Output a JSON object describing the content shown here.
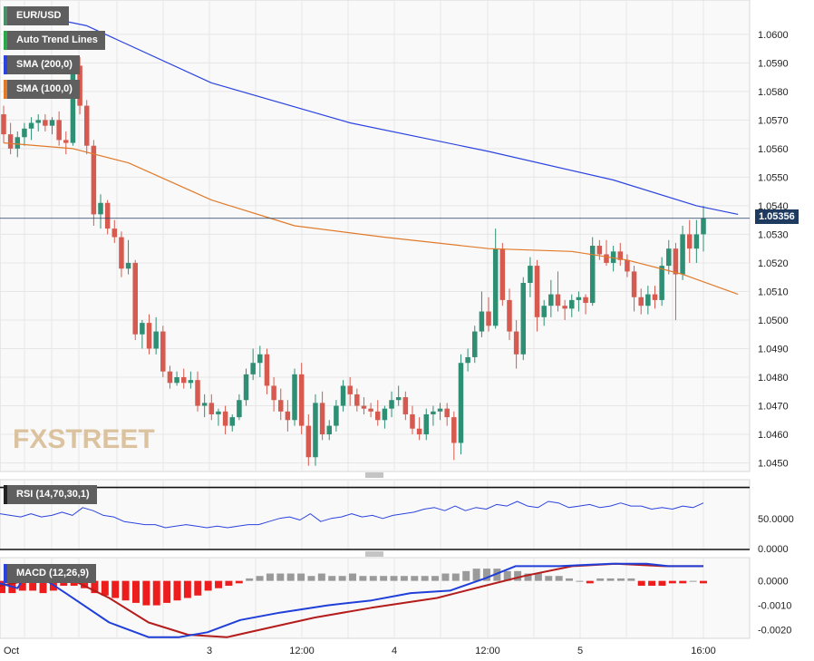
{
  "legend": {
    "symbol": "EUR/USD",
    "trend": "Auto Trend Lines",
    "sma200": "SMA (200,0)",
    "sma100": "SMA (100,0)",
    "rsi": "RSI (14,70,30,1)",
    "macd": "MACD (12,26,9)"
  },
  "watermark": "FXSTREET",
  "price_badge": "1.05356",
  "colors": {
    "bull": "#2f8f74",
    "bear": "#d65a4f",
    "sma200": "#2b44e0",
    "sma100": "#e07a2a",
    "rsi_line": "#2b44e0",
    "macd_line": "#1f3fd8",
    "signal_line": "#b51c1c",
    "hist_neg": "#ee1d1d",
    "hist_pos": "#9a9a9a",
    "legend_eur": "#4a8f6a",
    "legend_trend": "#2aa84a",
    "legend_sma200": "#2b44e0",
    "legend_sma100": "#e07a2a",
    "legend_rsi": "#222222",
    "legend_macd": "#2b44e0"
  },
  "chart_data": [
    {
      "type": "candlestick",
      "title": "EUR/USD",
      "ylim": [
        1.0447,
        1.0612
      ],
      "y_ticks": [
        "1.0450",
        "1.0460",
        "1.0470",
        "1.0480",
        "1.0490",
        "1.0500",
        "1.0510",
        "1.0520",
        "1.0530",
        "1.0540",
        "1.0550",
        "1.0560",
        "1.0570",
        "1.0580",
        "1.0590",
        "1.0600"
      ],
      "x_ticks": [
        "Oct",
        "3",
        "12:00",
        "4",
        "12:00",
        "5",
        "16:00"
      ],
      "last_price": 1.05356,
      "candles": [
        [
          1.0572,
          1.0575,
          1.0562,
          1.0565
        ],
        [
          1.0565,
          1.0569,
          1.0558,
          1.056
        ],
        [
          1.056,
          1.0566,
          1.0557,
          1.0564
        ],
        [
          1.0564,
          1.0569,
          1.0561,
          1.0567
        ],
        [
          1.0567,
          1.0571,
          1.0563,
          1.0569
        ],
        [
          1.0569,
          1.0572,
          1.0566,
          1.057
        ],
        [
          1.057,
          1.0572,
          1.0566,
          1.0568
        ],
        [
          1.0568,
          1.0571,
          1.0565,
          1.057
        ],
        [
          1.057,
          1.0573,
          1.0561,
          1.0563
        ],
        [
          1.0563,
          1.0566,
          1.0558,
          1.0562
        ],
        [
          1.0562,
          1.0592,
          1.0561,
          1.0589
        ],
        [
          1.0589,
          1.0592,
          1.0572,
          1.0575
        ],
        [
          1.0575,
          1.0577,
          1.0558,
          1.0561
        ],
        [
          1.0561,
          1.0563,
          1.0533,
          1.0537
        ],
        [
          1.0537,
          1.0544,
          1.0532,
          1.0541
        ],
        [
          1.0541,
          1.0542,
          1.053,
          1.0532
        ],
        [
          1.0532,
          1.0535,
          1.0527,
          1.0529
        ],
        [
          1.0529,
          1.0531,
          1.0515,
          1.0518
        ],
        [
          1.0518,
          1.0528,
          1.0516,
          1.052
        ],
        [
          1.052,
          1.0521,
          1.0493,
          1.0495
        ],
        [
          1.0495,
          1.05,
          1.049,
          1.0499
        ],
        [
          1.0499,
          1.0502,
          1.0488,
          1.049
        ],
        [
          1.049,
          1.0501,
          1.0488,
          1.0496
        ],
        [
          1.0496,
          1.0498,
          1.048,
          1.0482
        ],
        [
          1.0482,
          1.0484,
          1.0476,
          1.0478
        ],
        [
          1.0478,
          1.0482,
          1.0477,
          1.048
        ],
        [
          1.048,
          1.0483,
          1.0476,
          1.0478
        ],
        [
          1.0478,
          1.0482,
          1.0476,
          1.0479
        ],
        [
          1.0479,
          1.0482,
          1.0468,
          1.047
        ],
        [
          1.047,
          1.0474,
          1.0466,
          1.0471
        ],
        [
          1.0471,
          1.0474,
          1.0465,
          1.0467
        ],
        [
          1.0467,
          1.0469,
          1.0463,
          1.0468
        ],
        [
          1.0468,
          1.047,
          1.046,
          1.0463
        ],
        [
          1.0463,
          1.0467,
          1.0461,
          1.0466
        ],
        [
          1.0466,
          1.0474,
          1.0465,
          1.0472
        ],
        [
          1.0472,
          1.0483,
          1.047,
          1.0481
        ],
        [
          1.0481,
          1.049,
          1.0479,
          1.0485
        ],
        [
          1.0485,
          1.0491,
          1.048,
          1.0488
        ],
        [
          1.0488,
          1.049,
          1.0474,
          1.0477
        ],
        [
          1.0477,
          1.048,
          1.0468,
          1.0472
        ],
        [
          1.0472,
          1.0476,
          1.0465,
          1.0468
        ],
        [
          1.0468,
          1.0472,
          1.0461,
          1.0465
        ],
        [
          1.0465,
          1.0483,
          1.0463,
          1.0481
        ],
        [
          1.0481,
          1.0485,
          1.046,
          1.0463
        ],
        [
          1.0463,
          1.0467,
          1.0449,
          1.0452
        ],
        [
          1.0452,
          1.0474,
          1.0449,
          1.0471
        ],
        [
          1.0471,
          1.0475,
          1.0458,
          1.046
        ],
        [
          1.046,
          1.0465,
          1.0458,
          1.0463
        ],
        [
          1.0463,
          1.0472,
          1.0461,
          1.047
        ],
        [
          1.047,
          1.0479,
          1.0468,
          1.0477
        ],
        [
          1.0477,
          1.048,
          1.047,
          1.0474
        ],
        [
          1.0474,
          1.0476,
          1.0468,
          1.047
        ],
        [
          1.047,
          1.0473,
          1.0467,
          1.0469
        ],
        [
          1.0469,
          1.0471,
          1.0466,
          1.0468
        ],
        [
          1.0468,
          1.0472,
          1.0463,
          1.0465
        ],
        [
          1.0465,
          1.047,
          1.0462,
          1.0469
        ],
        [
          1.0469,
          1.0475,
          1.0466,
          1.0472
        ],
        [
          1.0472,
          1.0477,
          1.047,
          1.0473
        ],
        [
          1.0473,
          1.0475,
          1.0465,
          1.0467
        ],
        [
          1.0467,
          1.047,
          1.046,
          1.0462
        ],
        [
          1.0462,
          1.0466,
          1.0458,
          1.046
        ],
        [
          1.046,
          1.0469,
          1.0458,
          1.0467
        ],
        [
          1.0467,
          1.047,
          1.0463,
          1.0468
        ],
        [
          1.0468,
          1.0471,
          1.0465,
          1.0469
        ],
        [
          1.0469,
          1.0471,
          1.0463,
          1.0466
        ],
        [
          1.0466,
          1.0468,
          1.0451,
          1.0457
        ],
        [
          1.0457,
          1.0488,
          1.0453,
          1.0485
        ],
        [
          1.0485,
          1.049,
          1.0482,
          1.0487
        ],
        [
          1.0487,
          1.0498,
          1.0485,
          1.0496
        ],
        [
          1.0496,
          1.051,
          1.0494,
          1.0503
        ],
        [
          1.0503,
          1.0508,
          1.0496,
          1.0498
        ],
        [
          1.0498,
          1.0532,
          1.0497,
          1.0525
        ],
        [
          1.0525,
          1.0527,
          1.0505,
          1.0507
        ],
        [
          1.0507,
          1.0511,
          1.0493,
          1.0496
        ],
        [
          1.0496,
          1.05,
          1.0483,
          1.0488
        ],
        [
          1.0488,
          1.0515,
          1.0486,
          1.0513
        ],
        [
          1.0513,
          1.0522,
          1.0508,
          1.0519
        ],
        [
          1.0519,
          1.0521,
          1.0496,
          1.0501
        ],
        [
          1.0501,
          1.0507,
          1.0498,
          1.0505
        ],
        [
          1.0505,
          1.0514,
          1.0501,
          1.0509
        ],
        [
          1.0509,
          1.0517,
          1.0503,
          1.0505
        ],
        [
          1.0505,
          1.0507,
          1.05,
          1.0504
        ],
        [
          1.0504,
          1.0509,
          1.0501,
          1.0507
        ],
        [
          1.0507,
          1.051,
          1.0503,
          1.0508
        ],
        [
          1.0508,
          1.0509,
          1.0502,
          1.0506
        ],
        [
          1.0506,
          1.0529,
          1.0505,
          1.0526
        ],
        [
          1.0526,
          1.0528,
          1.0521,
          1.0523
        ],
        [
          1.0523,
          1.0528,
          1.0519,
          1.052
        ],
        [
          1.052,
          1.0526,
          1.0517,
          1.0524
        ],
        [
          1.0524,
          1.0527,
          1.0519,
          1.0521
        ],
        [
          1.0521,
          1.0523,
          1.0515,
          1.0517
        ],
        [
          1.0517,
          1.0519,
          1.0503,
          1.0508
        ],
        [
          1.0508,
          1.0511,
          1.0502,
          1.0505
        ],
        [
          1.0505,
          1.0512,
          1.0502,
          1.0509
        ],
        [
          1.0509,
          1.0512,
          1.0504,
          1.0507
        ],
        [
          1.0507,
          1.0522,
          1.0505,
          1.0519
        ],
        [
          1.0519,
          1.0528,
          1.0516,
          1.0525
        ],
        [
          1.0525,
          1.0527,
          1.05,
          1.0516
        ],
        [
          1.0516,
          1.0533,
          1.0514,
          1.053
        ],
        [
          1.053,
          1.0535,
          1.052,
          1.0525
        ],
        [
          1.0525,
          1.0535,
          1.052,
          1.053
        ],
        [
          1.053,
          1.054,
          1.0524,
          1.05356
        ]
      ],
      "sma200": [
        [
          0,
          1.0609
        ],
        [
          12,
          1.0603
        ],
        [
          30,
          1.0583
        ],
        [
          50,
          1.0569
        ],
        [
          70,
          1.0559
        ],
        [
          88,
          1.0549
        ],
        [
          100,
          1.054
        ],
        [
          106,
          1.0537
        ]
      ],
      "sma100": [
        [
          0,
          1.0562
        ],
        [
          10,
          1.056
        ],
        [
          18,
          1.0555
        ],
        [
          30,
          1.0542
        ],
        [
          42,
          1.0533
        ],
        [
          55,
          1.0529
        ],
        [
          70,
          1.0525
        ],
        [
          82,
          1.0524
        ],
        [
          90,
          1.0521
        ],
        [
          98,
          1.0516
        ],
        [
          106,
          1.0509
        ]
      ]
    },
    {
      "type": "line",
      "title": "RSI (14,70,30,1)",
      "ylim": [
        30,
        75
      ],
      "y_ticks": [
        "50.0000"
      ],
      "reference_levels": [
        70,
        30
      ],
      "values": [
        53,
        52,
        51,
        53,
        51,
        52,
        54,
        52,
        57,
        55,
        52,
        51,
        48,
        47,
        46,
        46,
        44,
        45,
        46,
        45,
        44,
        45,
        44,
        45,
        46,
        46,
        48,
        50,
        51,
        49,
        53,
        48,
        50,
        51,
        53,
        51,
        52,
        50,
        52,
        53,
        54,
        56,
        57,
        55,
        58,
        55,
        57,
        56,
        59,
        58,
        61,
        58,
        57,
        61,
        60,
        57,
        58,
        59,
        57,
        58,
        60,
        58,
        58,
        56,
        57,
        56,
        58,
        57,
        60
      ]
    },
    {
      "type": "bar+line",
      "title": "MACD (12,26,9)",
      "ylim": [
        -0.00235,
        0.00095
      ],
      "y_ticks": [
        "0.0000",
        "-0.0010",
        "-0.0020"
      ],
      "histogram": [
        -0.0005,
        -0.0005,
        -0.0004,
        -0.0004,
        -0.0005,
        -0.0004,
        -0.0002,
        -0.0002,
        -0.0003,
        -0.0005,
        -0.0006,
        -0.0007,
        -0.0008,
        -0.0009,
        -0.001,
        -0.001,
        -0.0009,
        -0.0008,
        -0.0007,
        -0.0006,
        -0.0004,
        -0.0003,
        -0.0002,
        -0.0001,
        0.0001,
        0.0002,
        0.0003,
        0.0003,
        0.0003,
        0.0003,
        0.0002,
        0.0003,
        0.0002,
        0.0002,
        0.0003,
        0.0002,
        0.0002,
        0.0002,
        0.0002,
        0.0002,
        0.0002,
        0.0002,
        0.0002,
        0.0003,
        0.0003,
        0.0004,
        0.0005,
        0.0005,
        0.0005,
        0.0004,
        0.0004,
        0.0003,
        0.0003,
        0.0002,
        0.0002,
        0.0001,
        0,
        -0.0001,
        0.0001,
        0.0001,
        0.0001,
        0.0001,
        -0.0002,
        -0.0002,
        -0.0002,
        -0.0001,
        -0.0001,
        0,
        -0.0001
      ],
      "macd": [
        [
          0,
          -0.0001
        ],
        [
          8,
          -0.0003
        ],
        [
          12,
          0.00025
        ],
        [
          18,
          0.0002
        ],
        [
          30,
          -0.0005
        ],
        [
          50,
          -0.0017
        ],
        [
          68,
          -0.0023
        ],
        [
          82,
          -0.0023
        ],
        [
          95,
          -0.0021
        ],
        [
          110,
          -0.0016
        ],
        [
          128,
          -0.0013
        ],
        [
          150,
          -0.001
        ],
        [
          170,
          -0.0008
        ],
        [
          188,
          -0.0005
        ],
        [
          206,
          -0.0004
        ],
        [
          222,
          0.0001
        ],
        [
          236,
          0.0006
        ],
        [
          256,
          0.0006
        ],
        [
          280,
          0.0007
        ],
        [
          296,
          0.0007
        ],
        [
          306,
          0.0006
        ],
        [
          322,
          0.0006
        ]
      ],
      "signal": [
        [
          0,
          -0.0002
        ],
        [
          18,
          0.0001
        ],
        [
          34,
          0.0
        ],
        [
          50,
          -0.0007
        ],
        [
          68,
          -0.0017
        ],
        [
          86,
          -0.0022
        ],
        [
          104,
          -0.0023
        ],
        [
          124,
          -0.0019
        ],
        [
          144,
          -0.0015
        ],
        [
          170,
          -0.0011
        ],
        [
          200,
          -0.0007
        ],
        [
          222,
          -0.0002
        ],
        [
          240,
          0.0002
        ],
        [
          262,
          0.0006
        ],
        [
          282,
          0.0007
        ],
        [
          304,
          0.0006
        ],
        [
          322,
          0.0006
        ]
      ]
    }
  ]
}
